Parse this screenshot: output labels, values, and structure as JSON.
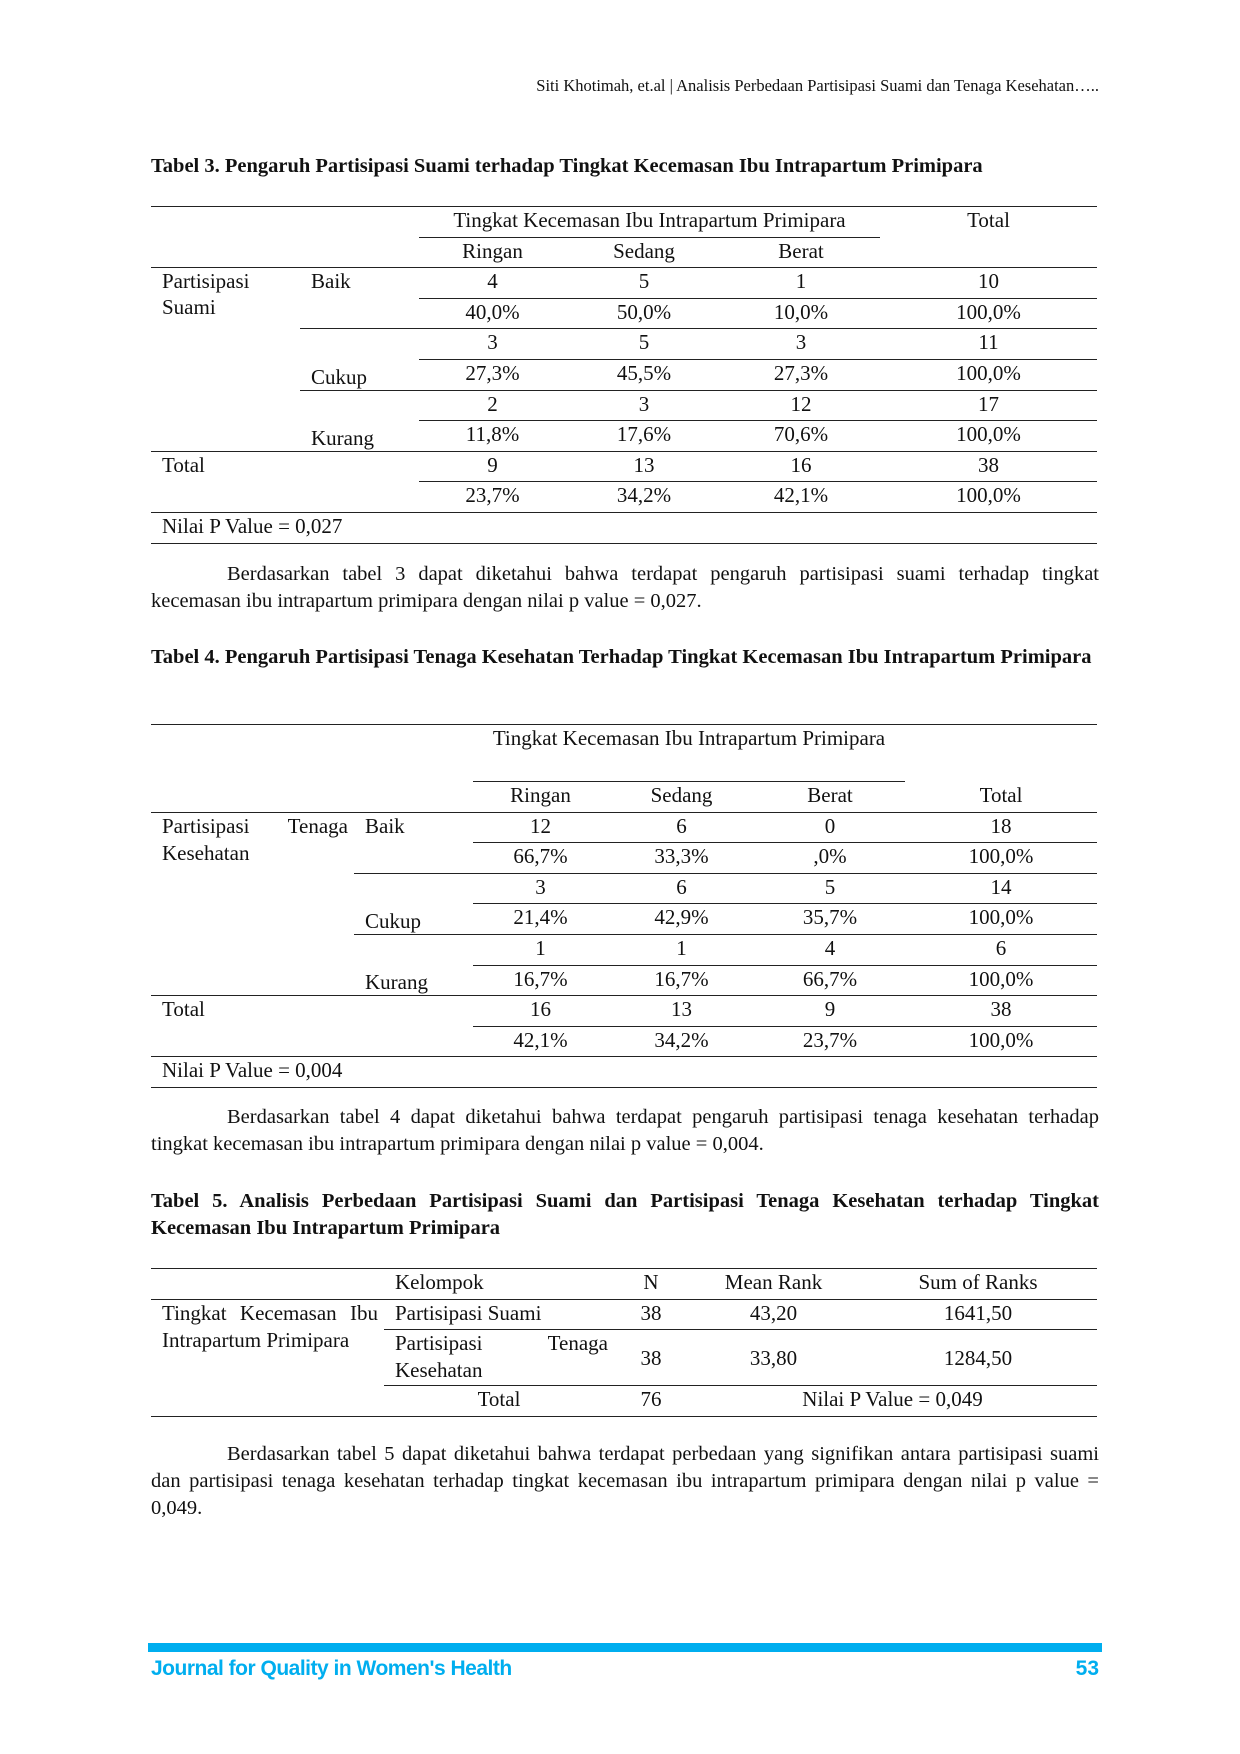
{
  "running_head": "Siti Khotimah, et.al | Analisis Perbedaan Partisipasi Suami dan Tenaga Kesehatan…..",
  "table3": {
    "title": "Tabel 3. Pengaruh Partisipasi Suami terhadap Tingkat Kecemasan Ibu Intrapartum Primipara",
    "group_header": "Tingkat Kecemasan Ibu Intrapartum Primipara",
    "total_header": "Total",
    "cols": [
      "Ringan",
      "Sedang",
      "Berat"
    ],
    "row_group": "Partisipasi Suami",
    "rows": [
      {
        "label": "Baik",
        "counts": [
          "4",
          "5",
          "1",
          "10"
        ],
        "pcts": [
          "40,0%",
          "50,0%",
          "10,0%",
          "100,0%"
        ]
      },
      {
        "label": "Cukup",
        "counts": [
          "3",
          "5",
          "3",
          "11"
        ],
        "pcts": [
          "27,3%",
          "45,5%",
          "27,3%",
          "100,0%"
        ]
      },
      {
        "label": "Kurang",
        "counts": [
          "2",
          "3",
          "12",
          "17"
        ],
        "pcts": [
          "11,8%",
          "17,6%",
          "70,6%",
          "100,0%"
        ]
      }
    ],
    "total": {
      "label": "Total",
      "counts": [
        "9",
        "13",
        "16",
        "38"
      ],
      "pcts": [
        "23,7%",
        "34,2%",
        "42,1%",
        "100,0%"
      ]
    },
    "p_value": "Nilai P Value = 0,027"
  },
  "para1": "Berdasarkan tabel 3 dapat diketahui bahwa terdapat pengaruh partisipasi suami terhadap tingkat kecemasan ibu intrapartum primipara dengan nilai p value = 0,027.",
  "table4": {
    "title": "Tabel 4. Pengaruh Partisipasi Tenaga Kesehatan Terhadap Tingkat Kecemasan Ibu Intrapartum Primipara",
    "group_header": "Tingkat Kecemasan Ibu Intrapartum Primipara",
    "total_header": "Total",
    "cols": [
      "Ringan",
      "Sedang",
      "Berat"
    ],
    "row_group": "Partisipasi Tenaga Kesehatan",
    "rows": [
      {
        "label": "Baik",
        "counts": [
          "12",
          "6",
          "0",
          "18"
        ],
        "pcts": [
          "66,7%",
          "33,3%",
          ",0%",
          "100,0%"
        ]
      },
      {
        "label": "Cukup",
        "counts": [
          "3",
          "6",
          "5",
          "14"
        ],
        "pcts": [
          "21,4%",
          "42,9%",
          "35,7%",
          "100,0%"
        ]
      },
      {
        "label": "Kurang",
        "counts": [
          "1",
          "1",
          "4",
          "6"
        ],
        "pcts": [
          "16,7%",
          "16,7%",
          "66,7%",
          "100,0%"
        ]
      }
    ],
    "total": {
      "label": "Total",
      "counts": [
        "16",
        "13",
        "9",
        "38"
      ],
      "pcts": [
        "42,1%",
        "34,2%",
        "23,7%",
        "100,0%"
      ]
    },
    "p_value": "Nilai P Value = 0,004"
  },
  "para2": "Berdasarkan tabel 4 dapat diketahui bahwa terdapat pengaruh partisipasi tenaga kesehatan terhadap tingkat kecemasan ibu intrapartum primipara dengan nilai p value = 0,004.",
  "table5": {
    "title": "Tabel 5. Analisis Perbedaan Partisipasi Suami dan Partisipasi Tenaga Kesehatan terhadap Tingkat Kecemasan Ibu Intrapartum Primipara",
    "headers": [
      "Kelompok",
      "N",
      "Mean Rank",
      "Sum of Ranks"
    ],
    "row_group": "Tingkat Kecemasan Ibu Intrapartum Primipara",
    "rows": [
      {
        "group": "Partisipasi Suami",
        "n": "38",
        "mean_rank": "43,20",
        "sum_ranks": "1641,50"
      },
      {
        "group": "Partisipasi Tenaga Kesehatan",
        "n": "38",
        "mean_rank": "33,80",
        "sum_ranks": "1284,50"
      }
    ],
    "total": {
      "label": "Total",
      "n": "76",
      "p_value": "Nilai P Value = 0,049"
    }
  },
  "para3": "Berdasarkan tabel 5 dapat diketahui bahwa terdapat perbedaan yang signifikan antara partisipasi suami dan partisipasi tenaga kesehatan terhadap tingkat kecemasan ibu intrapartum primipara dengan nilai p value = 0,049.",
  "footer": {
    "journal": "Journal for Quality in Women's Health",
    "page": "53",
    "accent_color": "#00aeef"
  }
}
